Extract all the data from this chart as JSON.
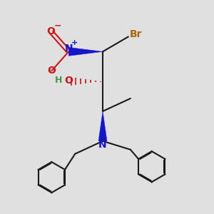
{
  "bg_color": "#e0e0e0",
  "bond_color": "#1a1a1a",
  "N_color": "#1515cc",
  "O_color": "#cc1515",
  "Br_color": "#aa6600",
  "H_color": "#449944",
  "lw": 1.5,
  "fs": 9,
  "xlim": [
    0,
    10
  ],
  "ylim": [
    0,
    10
  ]
}
